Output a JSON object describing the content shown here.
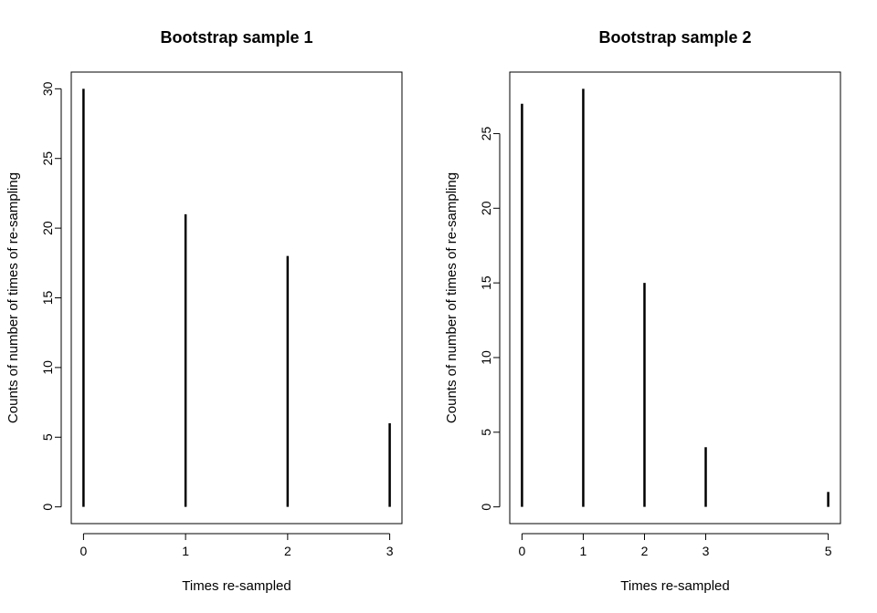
{
  "chart_data": [
    {
      "type": "bar",
      "title": "Bootstrap sample 1",
      "xlabel": "Times re-sampled",
      "ylabel": "Counts of number of times of re-sampling",
      "x": [
        0,
        1,
        2,
        3
      ],
      "values": [
        30,
        21,
        18,
        6
      ],
      "xticks": [
        "0",
        "1",
        "2",
        "3"
      ],
      "yticks": [
        "0",
        "5",
        "10",
        "15",
        "20",
        "25",
        "30"
      ],
      "xlim": [
        -0.12,
        3.12
      ],
      "ylim": [
        -1.2,
        31.2
      ],
      "grid": false,
      "bar_color": "#000000"
    },
    {
      "type": "bar",
      "title": "Bootstrap sample 2",
      "xlabel": "Times re-sampled",
      "ylabel": "Counts of number of times of re-sampling",
      "x": [
        0,
        1,
        2,
        3,
        5
      ],
      "values": [
        27,
        28,
        15,
        4,
        1
      ],
      "xticks": [
        "0",
        "1",
        "2",
        "3",
        "5"
      ],
      "yticks": [
        "0",
        "5",
        "10",
        "15",
        "20",
        "25"
      ],
      "xlim": [
        -0.2,
        5.2
      ],
      "ylim": [
        -1.12,
        29.12
      ],
      "grid": false,
      "bar_color": "#000000"
    }
  ]
}
